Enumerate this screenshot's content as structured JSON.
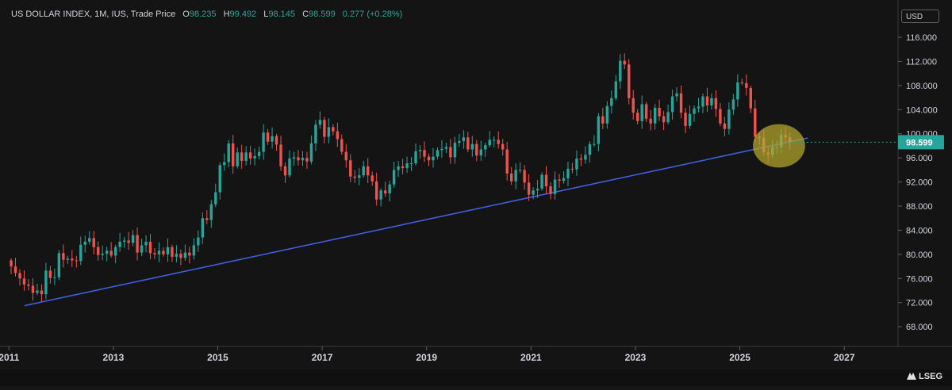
{
  "header": {
    "symbol": "US DOLLAR INDEX, 1M, IUS, Trade Price",
    "open_label": "O",
    "open": "98.235",
    "high_label": "H",
    "high": "99.492",
    "low_label": "L",
    "low": "98.145",
    "close_label": "C",
    "close": "98.599",
    "change": "0.277 (+0.28%)"
  },
  "currency_button": "USD",
  "brand": "LSEG",
  "price_badge": "98.599",
  "colors": {
    "up": "#26a69a",
    "down": "#ef5350",
    "trendline": "#3f5fe0",
    "highlight": "#b5a82c",
    "background": "#141414"
  },
  "chart_data": {
    "type": "candlestick",
    "interval": "1M",
    "y_ticks": [
      "116.000",
      "112.000",
      "108.000",
      "104.000",
      "100.000",
      "96.000",
      "92.000",
      "88.000",
      "84.000",
      "80.000",
      "76.000",
      "72.000",
      "68.000"
    ],
    "x_ticks": [
      "2011",
      "2013",
      "2015",
      "2017",
      "2019",
      "2021",
      "2023",
      "2025",
      "2027"
    ],
    "ylim": [
      65.0,
      118.5
    ],
    "xlim": [
      2010.95,
      2028.0
    ],
    "last_price": 98.599,
    "trendline": {
      "from": [
        2011.3,
        71.5
      ],
      "to": [
        2026.3,
        99.3
      ]
    },
    "highlight_ellipse": {
      "center": [
        2025.75,
        98.0
      ],
      "rx_years": 0.5,
      "ry_value": 3.6
    },
    "close_series": {
      "start": "2011-01",
      "values": [
        78.0,
        76.9,
        76.0,
        75.0,
        74.8,
        73.6,
        74.0,
        73.4,
        77.3,
        76.1,
        76.2,
        80.2,
        79.1,
        79.3,
        79.0,
        78.9,
        81.6,
        82.1,
        82.7,
        81.2,
        79.9,
        80.1,
        80.6,
        79.8,
        81.2,
        82.1,
        82.3,
        81.9,
        83.2,
        80.3,
        81.5,
        82.1,
        80.2,
        80.0,
        80.6,
        80.0,
        81.2,
        79.6,
        80.1,
        79.4,
        80.3,
        79.8,
        81.5,
        82.8,
        86.0,
        85.7,
        88.3,
        90.3,
        94.8,
        95.3,
        98.4,
        94.6,
        96.9,
        95.5,
        96.9,
        95.9,
        96.3,
        97.0,
        100.2,
        98.7,
        99.6,
        98.2,
        94.6,
        93.1,
        95.9,
        96.1,
        95.6,
        96.0,
        95.4,
        98.4,
        101.5,
        102.3,
        99.5,
        101.1,
        100.4,
        99.1,
        97.0,
        95.6,
        92.9,
        92.7,
        93.1,
        94.6,
        93.1,
        92.1,
        89.1,
        90.6,
        90.1,
        91.6,
        94.0,
        94.6,
        94.3,
        95.1,
        95.1,
        97.1,
        97.3,
        96.2,
        95.6,
        96.2,
        97.3,
        97.5,
        97.8,
        96.1,
        98.5,
        98.8,
        99.4,
        97.4,
        98.3,
        96.4,
        97.4,
        98.1,
        99.0,
        99.0,
        98.3,
        97.4,
        93.4,
        92.1,
        94.0,
        94.0,
        91.9,
        89.9,
        90.6,
        90.9,
        93.2,
        91.3,
        90.0,
        92.4,
        92.2,
        92.6,
        94.2,
        94.1,
        95.9,
        95.7,
        96.5,
        98.3,
        98.3,
        102.9,
        101.7,
        104.6,
        105.9,
        108.7,
        112.1,
        111.5,
        105.9,
        103.5,
        102.1,
        104.9,
        102.5,
        101.7,
        104.3,
        102.9,
        101.9,
        103.6,
        106.2,
        106.7,
        103.5,
        101.3,
        103.3,
        104.2,
        104.5,
        106.2,
        104.7,
        105.9,
        104.1,
        101.7,
        100.8,
        104.0,
        105.7,
        108.5,
        108.4,
        107.6,
        104.2,
        99.5,
        99.3,
        96.9,
        96.5,
        97.8,
        97.8,
        99.8,
        99.4,
        98.6
      ]
    }
  }
}
